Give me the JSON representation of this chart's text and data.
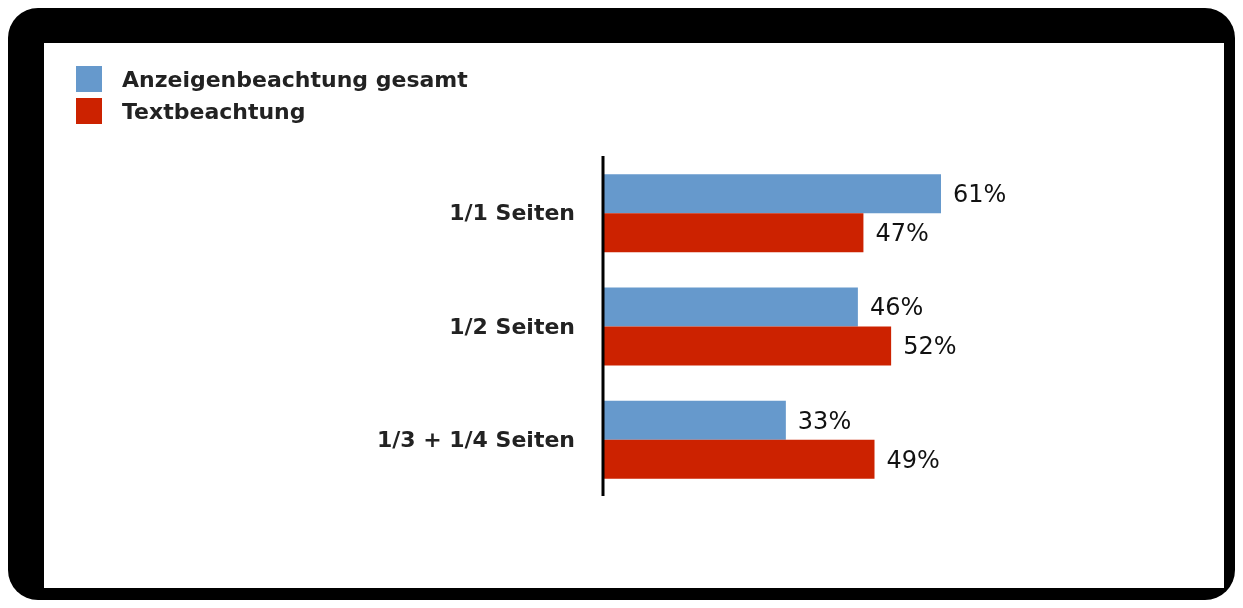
{
  "chart_data": {
    "type": "bar",
    "orientation": "horizontal",
    "categories": [
      "1/1 Seiten",
      "1/2 Seiten",
      "1/3 + 1/4 Seiten"
    ],
    "series": [
      {
        "name": "Anzeigenbeachtung gesamt",
        "color": "#6699cc",
        "values": [
          61,
          46,
          33
        ],
        "value_labels": [
          "61%",
          "46%",
          "33%"
        ]
      },
      {
        "name": "Textbeachtung",
        "color": "#cc2200",
        "values": [
          47,
          52,
          49
        ],
        "value_labels": [
          "47%",
          "52%",
          "49%"
        ]
      }
    ],
    "legend": "top left",
    "grid": false
  }
}
